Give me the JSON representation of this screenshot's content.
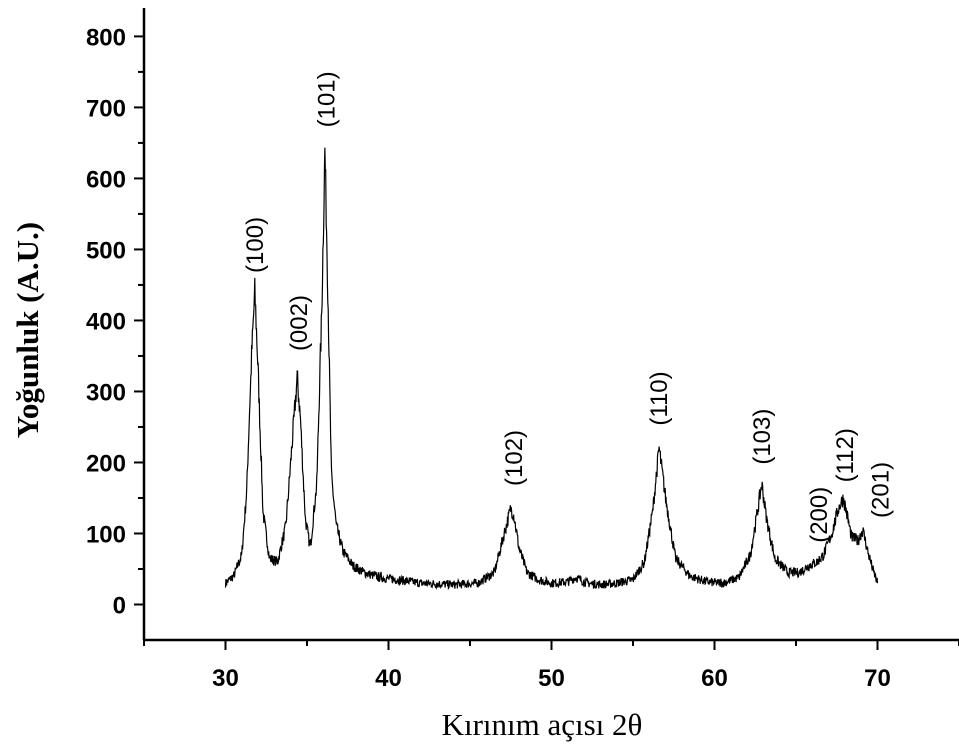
{
  "chart_data": {
    "type": "line",
    "title": "",
    "xlabel": "Kırınım açısı 2θ",
    "ylabel": "Yoğunluk (A.U.)",
    "xlim": [
      25,
      75
    ],
    "ylim": [
      -50,
      840
    ],
    "x_ticks": [
      "30",
      "40",
      "50",
      "60",
      "70"
    ],
    "y_ticks": [
      "0",
      "100",
      "200",
      "300",
      "400",
      "500",
      "600",
      "700",
      "800"
    ],
    "grid": false,
    "line_color": "#000000",
    "series": [
      {
        "x": [
          30.0,
          30.5,
          31.0,
          31.3,
          31.6,
          31.8,
          32.0,
          32.3,
          32.7,
          33.2,
          33.7,
          34.1,
          34.4,
          34.6,
          34.9,
          35.2,
          35.6,
          35.9,
          36.1,
          36.3,
          36.5,
          36.8,
          37.2,
          37.8,
          38.5,
          39.5,
          40.5,
          42.0,
          44.0,
          45.5,
          46.5,
          47.1,
          47.5,
          47.7,
          48.0,
          48.5,
          49.2,
          50.0,
          51.0,
          51.5,
          52.2,
          53.0,
          54.0,
          55.0,
          55.7,
          56.2,
          56.6,
          57.0,
          57.6,
          58.5,
          59.5,
          60.5,
          61.5,
          62.2,
          62.7,
          62.9,
          63.2,
          63.7,
          64.5,
          65.2,
          65.8,
          66.3,
          66.7,
          67.2,
          67.6,
          67.9,
          68.1,
          68.4,
          68.8,
          69.1,
          69.4,
          69.7,
          70.0
        ],
        "values": [
          30,
          40,
          70,
          160,
          350,
          440,
          330,
          130,
          65,
          60,
          110,
          230,
          320,
          260,
          120,
          80,
          170,
          410,
          640,
          420,
          180,
          110,
          75,
          55,
          45,
          38,
          35,
          30,
          28,
          30,
          45,
          100,
          135,
          125,
          80,
          45,
          35,
          30,
          32,
          38,
          30,
          28,
          30,
          35,
          60,
          130,
          220,
          150,
          65,
          40,
          32,
          30,
          38,
          70,
          140,
          170,
          120,
          65,
          45,
          45,
          55,
          60,
          70,
          100,
          135,
          150,
          130,
          95,
          90,
          105,
          75,
          50,
          30
        ]
      }
    ],
    "annotations": [
      {
        "text": "(100)",
        "x": 31.8,
        "y": 450
      },
      {
        "text": "(002)",
        "x": 34.5,
        "y": 340
      },
      {
        "text": "(101)",
        "x": 36.2,
        "y": 655
      },
      {
        "text": "(102)",
        "x": 47.7,
        "y": 150
      },
      {
        "text": "(110)",
        "x": 56.6,
        "y": 235
      },
      {
        "text": "(103)",
        "x": 62.9,
        "y": 180
      },
      {
        "text": "(200)",
        "x": 66.4,
        "y": 70
      },
      {
        "text": "(112)",
        "x": 68.0,
        "y": 155
      },
      {
        "text": "(201)",
        "x": 70.2,
        "y": 105
      }
    ]
  }
}
